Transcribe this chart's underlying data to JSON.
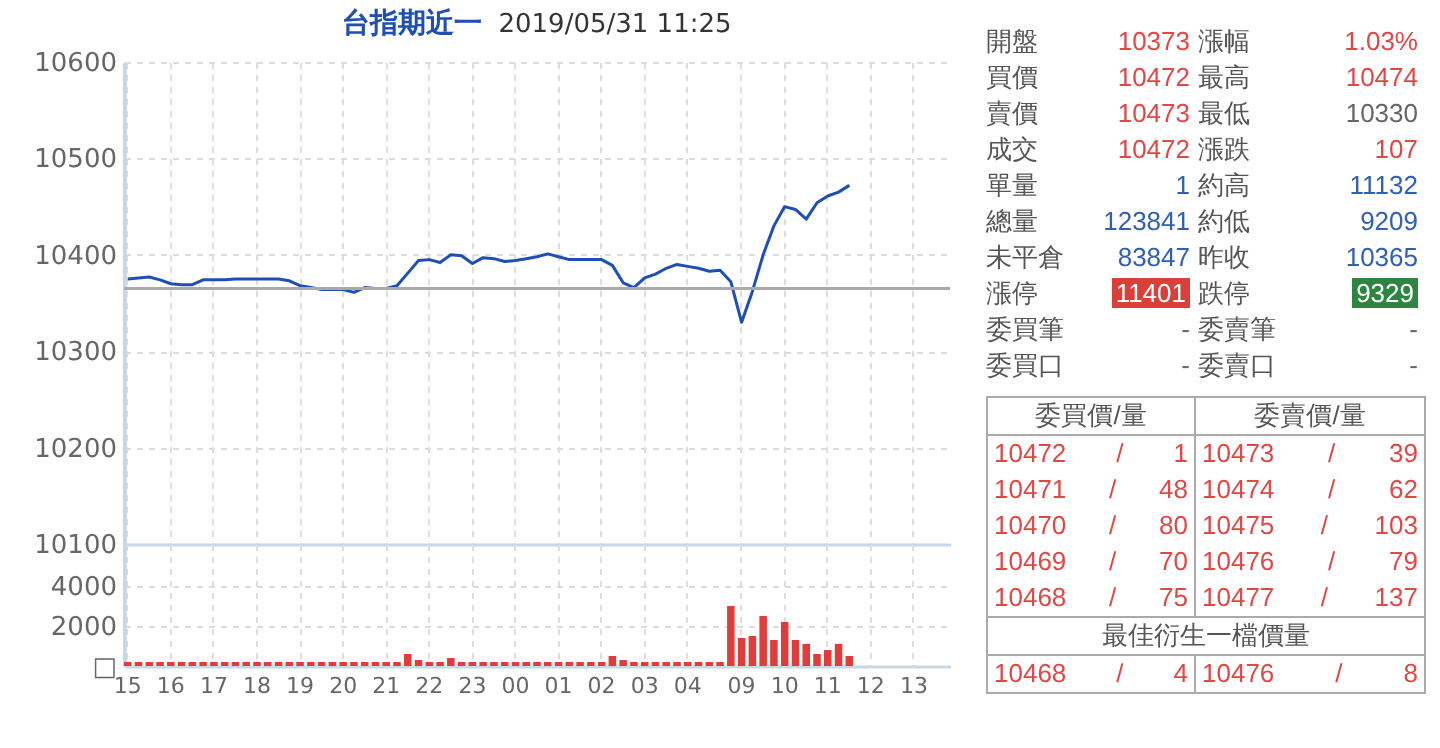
{
  "chart_data": [
    {
      "type": "line",
      "title": "台指期近一",
      "subtitle": "2019/05/31 11:25",
      "categories": [
        "15",
        null,
        null,
        null,
        "16",
        null,
        null,
        null,
        "17",
        null,
        null,
        null,
        "18",
        null,
        null,
        null,
        "19",
        null,
        null,
        null,
        "20",
        null,
        null,
        null,
        "21",
        null,
        null,
        null,
        "22",
        null,
        null,
        null,
        "23",
        null,
        null,
        null,
        "00",
        null,
        null,
        null,
        "01",
        null,
        null,
        null,
        "02",
        null,
        null,
        null,
        "03",
        null,
        null,
        null,
        "04",
        null,
        null,
        null,
        null,
        "09",
        null,
        null,
        null,
        "10",
        null,
        null,
        null,
        "11",
        null,
        null,
        null,
        "12",
        null,
        null,
        null,
        "13",
        null,
        null,
        null
      ],
      "series": [
        {
          "color": "#1f4fb4",
          "values": [
            10375,
            10376,
            10377,
            10374,
            10370,
            10369,
            10369,
            10374,
            10374,
            10374,
            10375,
            10375,
            10375,
            10375,
            10375,
            10373,
            10368,
            10366,
            10364,
            10364,
            10364,
            10361,
            10366,
            10365,
            10365,
            10368,
            10381,
            10394,
            10395,
            10392,
            10400,
            10399,
            10391,
            10397,
            10396,
            10393,
            10394,
            10396,
            10398,
            10401,
            10398,
            10395,
            10395,
            10395,
            10395,
            10389,
            10371,
            10366,
            10376,
            10380,
            10386,
            10390,
            10388,
            10386,
            10383,
            10384,
            10372,
            10330,
            10362,
            10400,
            10430,
            10450,
            10447,
            10437,
            10454,
            10461,
            10465,
            10472,
            null,
            null,
            null,
            null,
            null,
            null,
            null,
            null,
            null
          ]
        }
      ],
      "ylim": [
        10100,
        10600
      ],
      "yticks": [
        10100,
        10200,
        10300,
        10400,
        10500,
        10600
      ],
      "grid": true,
      "tick_labels": "y",
      "ref_lines": [
        {
          "axis": "y",
          "value": 10365,
          "color": "#aaaaaa"
        }
      ]
    },
    {
      "type": "bar",
      "categories": [
        "15",
        null,
        null,
        null,
        "16",
        null,
        null,
        null,
        "17",
        null,
        null,
        null,
        "18",
        null,
        null,
        null,
        "19",
        null,
        null,
        null,
        "20",
        null,
        null,
        null,
        "21",
        null,
        null,
        null,
        "22",
        null,
        null,
        null,
        "23",
        null,
        null,
        null,
        "00",
        null,
        null,
        null,
        "01",
        null,
        null,
        null,
        "02",
        null,
        null,
        null,
        "03",
        null,
        null,
        null,
        "04",
        null,
        null,
        null,
        null,
        "09",
        null,
        null,
        null,
        "10",
        null,
        null,
        null,
        "11",
        null,
        null,
        null,
        "12",
        null,
        null,
        null,
        "13",
        null,
        null,
        null
      ],
      "series": [
        {
          "color": "#e03c3c",
          "values": [
            200,
            200,
            200,
            200,
            200,
            200,
            200,
            200,
            200,
            200,
            200,
            200,
            200,
            200,
            200,
            200,
            200,
            200,
            200,
            200,
            200,
            200,
            200,
            200,
            200,
            200,
            600,
            300,
            200,
            200,
            400,
            200,
            200,
            200,
            200,
            200,
            200,
            200,
            200,
            200,
            200,
            200,
            200,
            200,
            200,
            500,
            300,
            200,
            200,
            200,
            200,
            200,
            200,
            200,
            200,
            200,
            3000,
            1400,
            1500,
            2500,
            1300,
            2200,
            1300,
            1100,
            600,
            800,
            1100,
            500,
            null,
            null,
            null,
            null,
            null,
            null,
            null,
            null,
            null
          ]
        }
      ],
      "ylim": [
        0,
        6100
      ],
      "yticks": [
        {
          "value": 0,
          "label": "□"
        },
        2000,
        4000
      ],
      "grid": true
    },
    {
      "type": "other",
      "annotations": [
        "開盤",
        "10373",
        "漲幅",
        "1.03%",
        "買價",
        "10472",
        "最高",
        "10474",
        "賣價",
        "10473",
        "最低",
        "10330",
        "成交",
        "10472",
        "漲跌",
        "107",
        "單量",
        "1",
        "約高",
        "11132",
        "總量",
        "123841",
        "約低",
        "9209",
        "未平倉",
        "83847",
        "昨收",
        "10365",
        "漲停",
        "11401",
        "跌停",
        "9329",
        "委買筆",
        "-",
        "委賣筆",
        "-",
        "委買口",
        "-",
        "委賣口",
        "-",
        "委買價/量",
        "委賣價/量",
        "10472 / 1",
        "10473 / 39",
        "10471 / 48",
        "10474 / 62",
        "10470 / 80",
        "10475 / 103",
        "10469 / 70",
        "10476 / 79",
        "10468 / 75",
        "10477 / 137",
        "最佳衍生一檔價量",
        "10468 / 4",
        "10476 / 8"
      ]
    }
  ]
}
